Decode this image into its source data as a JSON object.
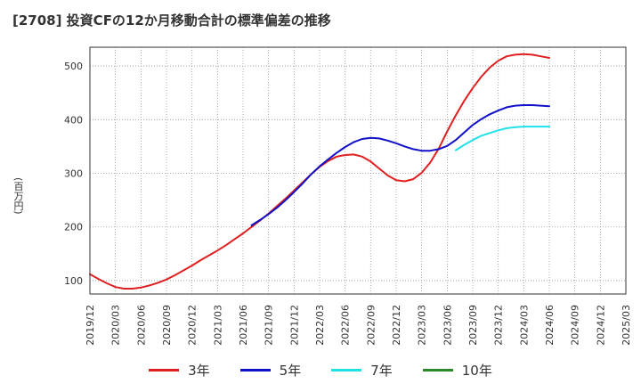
{
  "title": "[2708]  投資CFの12か月移動合計の標準偏差の推移",
  "chart_data": {
    "type": "line",
    "title": "[2708]  投資CFの12か月移動合計の標準偏差の推移",
    "ylabel": "(百万円)",
    "xlabel": "",
    "ylim": [
      75,
      535
    ],
    "yticks": [
      100,
      200,
      300,
      400,
      500
    ],
    "grid": true,
    "legend_position": "bottom",
    "x_tick_labels": [
      "2019/12",
      "2020/03",
      "2020/06",
      "2020/09",
      "2020/12",
      "2021/03",
      "2021/06",
      "2021/09",
      "2021/12",
      "2022/03",
      "2022/06",
      "2022/09",
      "2022/12",
      "2023/03",
      "2023/06",
      "2023/09",
      "2023/12",
      "2024/03",
      "2024/06",
      "2024/09",
      "2024/12",
      "2025/03"
    ],
    "series": [
      {
        "name": "3年",
        "color": "#e02020",
        "values": [
          112,
          103,
          95,
          88,
          85,
          85,
          87,
          91,
          96,
          102,
          110,
          119,
          128,
          138,
          147,
          156,
          166,
          177,
          188,
          200,
          212,
          225,
          239,
          253,
          268,
          283,
          298,
          312,
          323,
          331,
          334,
          335,
          331,
          322,
          309,
          296,
          287,
          285,
          289,
          301,
          320,
          346,
          378,
          408,
          435,
          459,
          480,
          497,
          510,
          518,
          521,
          522,
          521,
          518,
          515
        ]
      },
      {
        "name": "5年",
        "color": "#1010c8",
        "values": [
          null,
          null,
          null,
          null,
          null,
          null,
          null,
          null,
          null,
          null,
          null,
          null,
          null,
          null,
          null,
          null,
          null,
          null,
          null,
          203,
          213,
          224,
          236,
          250,
          265,
          281,
          298,
          313,
          326,
          338,
          349,
          358,
          364,
          366,
          365,
          361,
          356,
          350,
          345,
          342,
          342,
          345,
          351,
          362,
          376,
          390,
          401,
          410,
          417,
          423,
          426,
          427,
          427,
          426,
          425
        ]
      },
      {
        "name": "7年",
        "color": "#20e0e8",
        "values": [
          null,
          null,
          null,
          null,
          null,
          null,
          null,
          null,
          null,
          null,
          null,
          null,
          null,
          null,
          null,
          null,
          null,
          null,
          null,
          null,
          null,
          null,
          null,
          null,
          null,
          null,
          null,
          null,
          null,
          null,
          null,
          null,
          null,
          null,
          null,
          null,
          null,
          null,
          null,
          null,
          null,
          null,
          null,
          343,
          353,
          362,
          370,
          375,
          380,
          384,
          386,
          387,
          387,
          387,
          387
        ]
      },
      {
        "name": "10年",
        "color": "#2a8a2a",
        "values": []
      }
    ]
  }
}
